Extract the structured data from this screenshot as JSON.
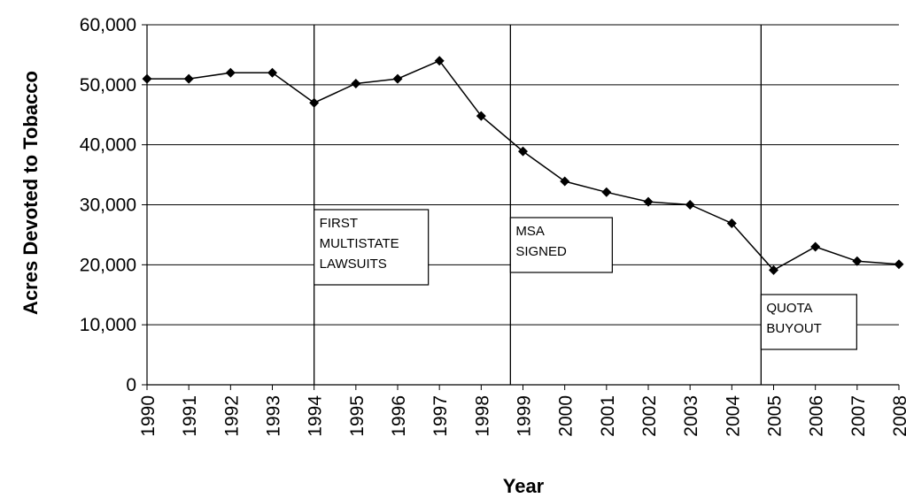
{
  "chart_data": {
    "type": "line",
    "xlabel": "Year",
    "ylabel": "Acres Devoted to Tobacco",
    "ylim": [
      0,
      60000
    ],
    "yticks": [
      0,
      10000,
      20000,
      30000,
      40000,
      50000,
      60000
    ],
    "ytick_labels": [
      "0",
      "10,000",
      "20,000",
      "30,000",
      "40,000",
      "50,000",
      "60,000"
    ],
    "grid": true,
    "legend": "none",
    "categories": [
      "1990",
      "1991",
      "1992",
      "1993",
      "1994",
      "1995",
      "1996",
      "1997",
      "1998",
      "1999",
      "2000",
      "2001",
      "2002",
      "2003",
      "2004",
      "2005",
      "2006",
      "2007",
      "2008"
    ],
    "series": [
      {
        "values": [
          51000,
          51000,
          52000,
          52000,
          47000,
          50200,
          51000,
          54000,
          44800,
          38900,
          33900,
          32100,
          30500,
          30000,
          26900,
          19100,
          23000,
          20600,
          20100
        ],
        "color": "#000000",
        "marker": "diamond"
      }
    ],
    "annotations": [
      {
        "year": 1994,
        "lines": [
          "FIRST",
          "MULTISTATE",
          "LAWSUITS"
        ]
      },
      {
        "year": 1998.7,
        "lines": [
          "MSA",
          "SIGNED"
        ]
      },
      {
        "year": 2004.7,
        "lines": [
          "QUOTA",
          "BUYOUT"
        ]
      }
    ]
  }
}
